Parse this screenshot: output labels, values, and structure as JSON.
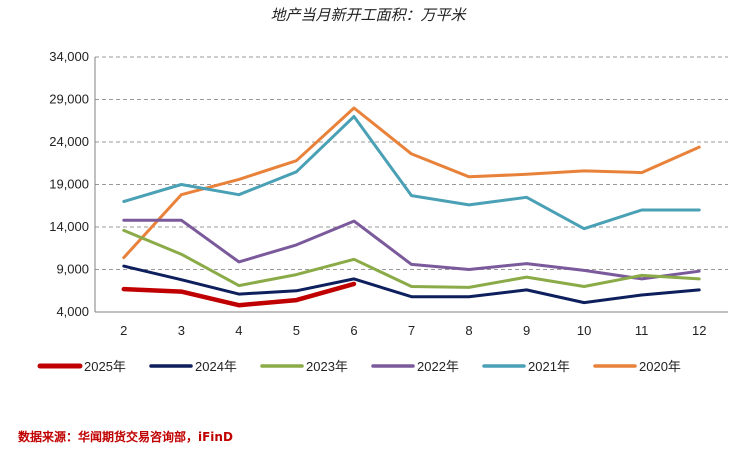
{
  "chart_data": {
    "type": "line",
    "title": "地产当月新开工面积：万平米",
    "xlabel": "",
    "ylabel": "",
    "x": [
      "2",
      "3",
      "4",
      "5",
      "6",
      "7",
      "8",
      "9",
      "10",
      "11",
      "12"
    ],
    "ylim": [
      4000,
      34000
    ],
    "yticks": [
      "4,000",
      "9,000",
      "14,000",
      "19,000",
      "24,000",
      "29,000",
      "34,000"
    ],
    "grid": "horizontal dashed",
    "legend_position": "bottom",
    "series": [
      {
        "name": "2025年",
        "color": "#c00000",
        "values": [
          6700,
          6400,
          4800,
          5400,
          7300,
          null,
          null,
          null,
          null,
          null,
          null
        ]
      },
      {
        "name": "2024年",
        "color": "#0d1f5c",
        "values": [
          9400,
          7800,
          6100,
          6500,
          7900,
          5800,
          5800,
          6600,
          5100,
          6000,
          6600
        ]
      },
      {
        "name": "2023年",
        "color": "#8aab47",
        "values": [
          13600,
          10800,
          7100,
          8400,
          10200,
          7000,
          6900,
          8100,
          7000,
          8300,
          7900
        ]
      },
      {
        "name": "2022年",
        "color": "#7b5a9c",
        "values": [
          14800,
          14800,
          9900,
          11900,
          14700,
          9600,
          9000,
          9700,
          8900,
          7900,
          8800
        ]
      },
      {
        "name": "2021年",
        "color": "#4aa0b5",
        "values": [
          17000,
          19000,
          17800,
          20500,
          27000,
          17700,
          16600,
          17500,
          13800,
          16000,
          16000
        ]
      },
      {
        "name": "2020年",
        "color": "#e8823a",
        "values": [
          10400,
          17800,
          19600,
          21800,
          28000,
          22600,
          19900,
          20200,
          20600,
          20400,
          23400
        ]
      }
    ]
  },
  "source": "数据来源：华闻期货交易咨询部，iFinD"
}
